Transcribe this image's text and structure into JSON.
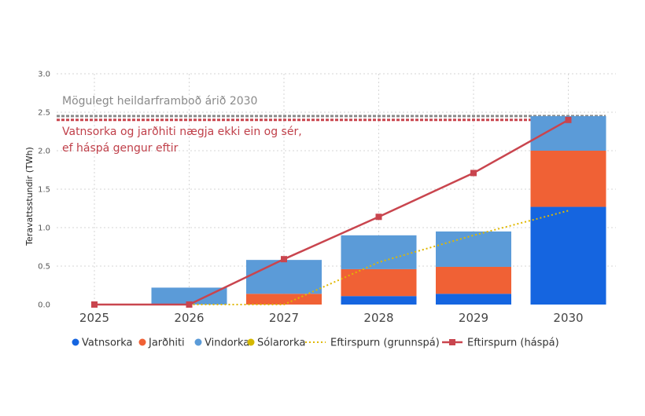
{
  "chart_data": {
    "type": "bar",
    "title": "",
    "xlabel": "",
    "ylabel": "Teravattsstundir (TWh)",
    "ylim": [
      0,
      3.0
    ],
    "yticks": [
      "0.0",
      "0.5",
      "1.0",
      "1.5",
      "2.0",
      "2.5",
      "3.0"
    ],
    "grid": true,
    "legend_position": "bottom",
    "categories": [
      "2025",
      "2026",
      "2027",
      "2028",
      "2029",
      "2030"
    ],
    "series": [
      {
        "name": "Vatnsorka",
        "kind": "bar",
        "color": "#1565e0",
        "values": [
          0,
          0,
          0,
          0.11,
          0.14,
          1.27
        ]
      },
      {
        "name": "Jarðhiti",
        "kind": "bar",
        "color": "#f06135",
        "values": [
          0,
          0,
          0.14,
          0.35,
          0.35,
          0.73
        ]
      },
      {
        "name": "Vindorka",
        "kind": "bar",
        "color": "#5b9bd8",
        "values": [
          0,
          0.22,
          0.44,
          0.44,
          0.46,
          0.45
        ]
      },
      {
        "name": "Sólarorka",
        "kind": "bar",
        "color": "#d4b800",
        "values": [
          0,
          0,
          0,
          0,
          0,
          0
        ]
      },
      {
        "name": "Eftirspurn (grunnspá)",
        "kind": "line-dotted",
        "color": "#e0b800",
        "values": [
          null,
          0,
          0,
          0.55,
          0.9,
          1.22
        ]
      },
      {
        "name": "Eftirspurn (háspá)",
        "kind": "line-marker",
        "color": "#c9454e",
        "values": [
          0,
          0,
          0.59,
          1.14,
          1.71,
          2.4
        ]
      }
    ],
    "reference_lines": [
      {
        "value": 2.45,
        "color": "#8a8a8a"
      },
      {
        "value": 2.4,
        "color": "#c9454e"
      }
    ],
    "annotations": [
      {
        "text": "Mögulegt heildarframboð árið 2030",
        "color": "#8a8a8a"
      },
      {
        "text": "Vatnsorka og jarðhiti nægja ekki ein og sér,",
        "color": "#c0404a"
      },
      {
        "text": "ef háspá gengur eftir",
        "color": "#c0404a"
      }
    ]
  }
}
